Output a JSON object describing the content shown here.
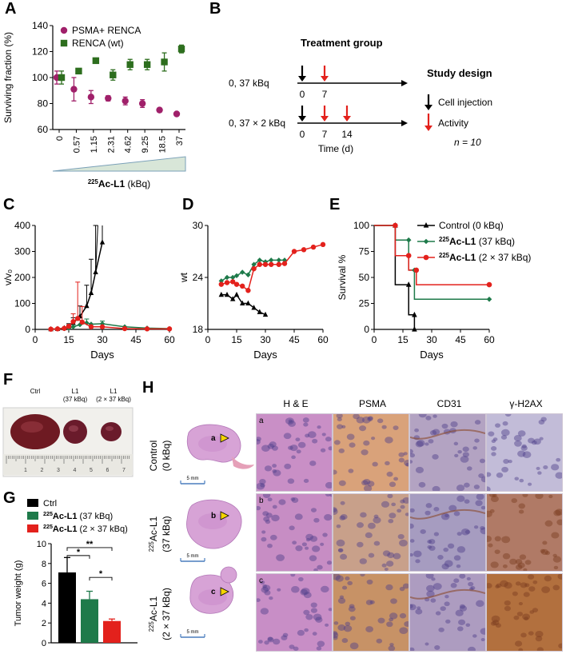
{
  "panel_labels": {
    "A": "A",
    "B": "B",
    "C": "C",
    "D": "D",
    "E": "E",
    "F": "F",
    "G": "G",
    "H": "H"
  },
  "colors": {
    "magenta": "#a0206a",
    "green": "#2d6e1e",
    "black": "#000000",
    "red": "#e3211c",
    "teal": "#1e7a4a",
    "he": "#d9a6d8",
    "ihc_brown": "#b06a3a",
    "ihc_blue": "#8a86b8"
  },
  "chart_data": [
    {
      "panel": "A",
      "type": "scatter",
      "ylabel": "Surviving fraction (%)",
      "xlabel_iso": "225",
      "xlabel_main": "Ac-L1",
      "xlabel_unit": "(kBq)",
      "categories": [
        "0",
        "0.57",
        "1.15",
        "2.31",
        "4.62",
        "9.25",
        "18.5",
        "37"
      ],
      "ylim": [
        60,
        140
      ],
      "yticks": [
        60,
        80,
        100,
        120,
        140
      ],
      "legend": "top-left",
      "series": [
        {
          "name": "PSMA+ RENCA",
          "marker": "circle",
          "color": "#a0206a",
          "values": [
            100,
            91,
            85,
            84,
            82,
            80,
            75,
            72
          ],
          "err": [
            5,
            9,
            5,
            2,
            3,
            3,
            1,
            1
          ]
        },
        {
          "name": "RENCA (wt)",
          "marker": "square",
          "color": "#2d6e1e",
          "values": [
            100,
            105,
            113,
            102,
            110,
            110,
            112,
            122
          ],
          "err": [
            5,
            1,
            2,
            4,
            4,
            4,
            7,
            3
          ]
        }
      ]
    },
    {
      "panel": "C",
      "type": "line",
      "ylabel": "v/v₀",
      "xlabel": "Days",
      "xlim": [
        0,
        60
      ],
      "xticks": [
        0,
        15,
        30,
        45,
        60
      ],
      "ylim": [
        0,
        400
      ],
      "yticks": [
        0,
        100,
        200,
        300,
        400
      ],
      "series": [
        {
          "group": "control",
          "color": "#000000",
          "marker": "triangle",
          "x": [
            7,
            10,
            13,
            15,
            17,
            20,
            23,
            25,
            27,
            30
          ],
          "y": [
            1,
            2,
            5,
            12,
            25,
            50,
            90,
            140,
            220,
            335
          ]
        },
        {
          "group": "37kBq",
          "color": "#1e7a4a",
          "marker": "diamond",
          "x": [
            7,
            10,
            13,
            15,
            17,
            20,
            23,
            25,
            30,
            40,
            50,
            60
          ],
          "y": [
            1,
            2,
            3,
            5,
            10,
            18,
            25,
            20,
            22,
            10,
            5,
            3
          ]
        },
        {
          "group": "2x37kBq",
          "color": "#e3211c",
          "marker": "circle",
          "x": [
            7,
            10,
            13,
            15,
            17,
            19,
            21,
            25,
            30,
            40,
            50,
            60
          ],
          "y": [
            1,
            2,
            4,
            12,
            30,
            42,
            28,
            10,
            10,
            3,
            2,
            2
          ]
        }
      ]
    },
    {
      "panel": "D",
      "type": "line",
      "ylabel": "wt",
      "xlabel": "Days",
      "xlim": [
        0,
        60
      ],
      "xticks": [
        0,
        15,
        30,
        45,
        60
      ],
      "ylim": [
        18,
        30
      ],
      "yticks": [
        18,
        24,
        30
      ],
      "series": [
        {
          "group": "control",
          "color": "#000000",
          "marker": "triangle",
          "x": [
            7,
            10,
            13,
            15,
            18,
            21,
            24,
            27,
            30
          ],
          "y": [
            22,
            22,
            21.5,
            22,
            21,
            21,
            20.5,
            20,
            19.7
          ]
        },
        {
          "group": "37kBq",
          "color": "#1e7a4a",
          "marker": "diamond",
          "x": [
            7,
            10,
            13,
            15,
            18,
            21,
            24,
            27,
            30,
            33,
            37,
            40
          ],
          "y": [
            23.6,
            24,
            24,
            24.2,
            24.6,
            24.3,
            25.5,
            26,
            25.8,
            26,
            26,
            26
          ]
        },
        {
          "group": "2x37kBq",
          "color": "#e3211c",
          "marker": "circle",
          "x": [
            7,
            10,
            13,
            15,
            18,
            21,
            24,
            27,
            30,
            33,
            37,
            40,
            45,
            50,
            55,
            60
          ],
          "y": [
            23.2,
            23.4,
            23.5,
            23.2,
            23,
            22.5,
            25,
            25.5,
            25.5,
            25.5,
            25.5,
            25.6,
            27,
            27.2,
            27.5,
            27.8
          ]
        }
      ]
    },
    {
      "panel": "E",
      "type": "line",
      "ylabel": "Survival %",
      "xlabel": "Days",
      "xlim": [
        0,
        60
      ],
      "xticks": [
        0,
        15,
        30,
        45,
        60
      ],
      "ylim": [
        0,
        100
      ],
      "yticks": [
        0,
        25,
        50,
        75,
        100
      ],
      "legend": "top-right",
      "series": [
        {
          "name_iso": "",
          "name": "Control (0 kBq)",
          "color": "#000000",
          "marker": "triangle",
          "x": [
            0,
            11,
            11,
            18,
            18,
            21,
            21
          ],
          "y": [
            100,
            100,
            43,
            43,
            14,
            14,
            0
          ]
        },
        {
          "name_iso": "225",
          "name": "Ac-L1",
          "name_unit": "(37 kBq)",
          "color": "#1e7a4a",
          "marker": "diamond",
          "x": [
            0,
            11,
            11,
            18,
            18,
            21,
            21,
            60
          ],
          "y": [
            100,
            100,
            86,
            86,
            57,
            57,
            29,
            29
          ]
        },
        {
          "name_iso": "225",
          "name": "Ac-L1",
          "name_unit": "(2 × 37 kBq)",
          "color": "#e3211c",
          "marker": "circle",
          "x": [
            0,
            11,
            11,
            18,
            18,
            22,
            22,
            60
          ],
          "y": [
            100,
            100,
            71,
            71,
            57,
            57,
            43,
            43
          ]
        }
      ]
    },
    {
      "panel": "G",
      "type": "bar",
      "ylabel": "Tumor weight (g)",
      "ylim": [
        0,
        10
      ],
      "yticks": [
        0,
        2,
        4,
        6,
        8,
        10
      ],
      "legend": "top-left",
      "categories": [
        "Ctrl",
        "37 kBq",
        "2 × 37 kBq"
      ],
      "legend_entries": [
        {
          "iso": "",
          "name": "Ctrl",
          "unit": "",
          "color": "#000000"
        },
        {
          "iso": "225",
          "name": "Ac-L1",
          "unit": "(37 kBq)",
          "color": "#1e7a4a"
        },
        {
          "iso": "225",
          "name": "Ac-L1",
          "unit": "(2 × 37 kBq)",
          "color": "#e3211c"
        }
      ],
      "values": [
        7.1,
        4.4,
        2.2
      ],
      "err": [
        1.5,
        0.8,
        0.2
      ],
      "significance": [
        {
          "pair": [
            0,
            1
          ],
          "label": "*"
        },
        {
          "pair": [
            0,
            2
          ],
          "label": "**"
        },
        {
          "pair": [
            1,
            2
          ],
          "label": "*"
        }
      ]
    }
  ],
  "panelB": {
    "treatment_title": "Treatment group",
    "study_title": "Study design",
    "row1_label": "0, 37 kBq",
    "row2_label": "0, 37 × 2 kBq",
    "row1_ticks": [
      "0",
      "7"
    ],
    "row2_ticks": [
      "0",
      "7",
      "14"
    ],
    "time_label": "Time (d)",
    "legend_cell": "Cell injection",
    "legend_activity": "Activity",
    "n_label": "n = 10"
  },
  "panelF": {
    "labels": [
      {
        "line1": "Ctrl",
        "line2": ""
      },
      {
        "line1": "L1",
        "line2": "(37 kBq)"
      },
      {
        "line1": "L1",
        "line2": "(2 × 37 kBq)"
      }
    ],
    "ruler_numbers": [
      "1",
      "2",
      "3",
      "4",
      "5",
      "6",
      "7"
    ]
  },
  "panelH": {
    "columns": [
      "H & E",
      "PSMA",
      "CD31",
      "γ-H2AX"
    ],
    "rows": [
      {
        "line1": "Control",
        "line2": "(0 kBq)",
        "iso": "",
        "letter": "a"
      },
      {
        "line1": "Ac-L1",
        "line2": "(37 kBq)",
        "iso": "225",
        "letter": "b"
      },
      {
        "line1": "Ac-L1",
        "line2": "(2 × 37 kBq)",
        "iso": "225",
        "letter": "c"
      }
    ],
    "scale_label": "5 mm"
  }
}
